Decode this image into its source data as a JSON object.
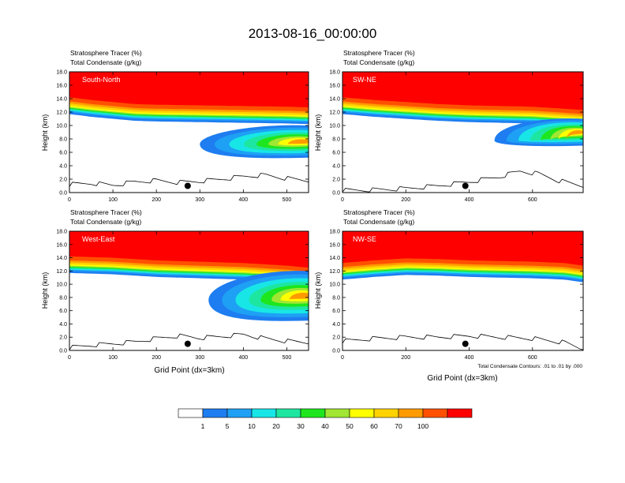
{
  "page": {
    "title": "2013-08-16_00:00:00"
  },
  "colors": {
    "levels": [
      "#ffffff",
      "#1e7df0",
      "#1ea0f5",
      "#18e6e6",
      "#1de6a0",
      "#1ee61e",
      "#a0e632",
      "#ffff00",
      "#ffd200",
      "#ff9b00",
      "#ff5000",
      "#ff0000"
    ],
    "contour": "#000000",
    "marker": "#000000"
  },
  "legend": {
    "tick_labels": [
      "1",
      "5",
      "10",
      "20",
      "30",
      "40",
      "50",
      "60",
      "70",
      "100"
    ]
  },
  "chart_data": [
    {
      "type": "contour-cross-section",
      "label": "South-North",
      "left_title_1": "Stratosphere Tracer   (%)",
      "left_title_2": "Total Condensate   (g/kg)",
      "ylabel": "Height (km)",
      "xlabel": "",
      "xlim": [
        0,
        550
      ],
      "ylim": [
        0,
        18
      ],
      "x_ticks": [
        "0",
        "100",
        "200",
        "300",
        "400",
        "500"
      ],
      "y_ticks": [
        "0.0",
        "2.0",
        "4.0",
        "6.0",
        "8.0",
        "10.0",
        "12.0",
        "14.0",
        "16.0",
        "18.0"
      ],
      "tropopause_km": [
        [
          0,
          14.2
        ],
        [
          50,
          13.8
        ],
        [
          100,
          13.5
        ],
        [
          150,
          13.2
        ],
        [
          200,
          13.1
        ],
        [
          300,
          13.0
        ],
        [
          400,
          12.9
        ],
        [
          500,
          12.8
        ],
        [
          550,
          12.7
        ]
      ],
      "intrusion": {
        "tip_x": 300,
        "tip_y": 6.8,
        "right_y_top": 10.0,
        "right_y_bottom": 5.2
      },
      "terrain_km": [
        [
          0,
          1.2
        ],
        [
          50,
          1.4
        ],
        [
          100,
          1.1
        ],
        [
          150,
          1.6
        ],
        [
          200,
          1.8
        ],
        [
          250,
          1.5
        ],
        [
          300,
          1.7
        ],
        [
          350,
          2.0
        ],
        [
          400,
          2.4
        ],
        [
          450,
          2.6
        ],
        [
          500,
          2.1
        ],
        [
          550,
          1.8
        ]
      ],
      "marker": {
        "x": 272,
        "y": 1.0
      }
    },
    {
      "type": "contour-cross-section",
      "label": "SW-NE",
      "left_title_1": "Stratosphere Tracer   (%)",
      "left_title_2": "Total Condensate   (g/kg)",
      "ylabel": "Height (km)",
      "xlabel": "",
      "xlim": [
        0,
        760
      ],
      "ylim": [
        0,
        18
      ],
      "x_ticks": [
        "0",
        "200",
        "400",
        "600"
      ],
      "y_ticks": [
        "0.0",
        "2.0",
        "4.0",
        "6.0",
        "8.0",
        "10.0",
        "12.0",
        "14.0",
        "16.0",
        "18.0"
      ],
      "tropopause_km": [
        [
          0,
          14.2
        ],
        [
          100,
          13.8
        ],
        [
          200,
          13.5
        ],
        [
          300,
          13.2
        ],
        [
          400,
          13.0
        ],
        [
          500,
          12.9
        ],
        [
          600,
          12.8
        ],
        [
          700,
          12.5
        ],
        [
          760,
          12.3
        ]
      ],
      "intrusion": {
        "tip_x": 480,
        "tip_y": 6.5,
        "right_y_top": 11.0,
        "right_y_bottom": 7.0
      },
      "terrain_km": [
        [
          0,
          0.3
        ],
        [
          100,
          0.4
        ],
        [
          200,
          0.6
        ],
        [
          300,
          1.0
        ],
        [
          400,
          1.6
        ],
        [
          500,
          2.4
        ],
        [
          560,
          3.2
        ],
        [
          620,
          2.8
        ],
        [
          680,
          1.8
        ],
        [
          760,
          1.0
        ]
      ],
      "marker": {
        "x": 388,
        "y": 1.0
      }
    },
    {
      "type": "contour-cross-section",
      "label": "West-East",
      "left_title_1": "Stratosphere Tracer   (%)",
      "left_title_2": "Total Condensate   (g/kg)",
      "ylabel": "Height (km)",
      "xlabel": "Grid Point (dx=3km)",
      "xlim": [
        0,
        550
      ],
      "ylim": [
        0,
        18
      ],
      "x_ticks": [
        "0",
        "100",
        "200",
        "300",
        "400",
        "500"
      ],
      "y_ticks": [
        "0.0",
        "2.0",
        "4.0",
        "6.0",
        "8.0",
        "10.0",
        "12.0",
        "14.0",
        "16.0",
        "18.0"
      ],
      "tropopause_km": [
        [
          0,
          14.2
        ],
        [
          100,
          14.0
        ],
        [
          200,
          13.6
        ],
        [
          300,
          13.4
        ],
        [
          400,
          13.2
        ],
        [
          500,
          12.8
        ],
        [
          550,
          12.5
        ]
      ],
      "intrusion": {
        "tip_x": 320,
        "tip_y": 7.0,
        "right_y_top": 12.0,
        "right_y_bottom": 4.5
      },
      "terrain_km": [
        [
          0,
          0.4
        ],
        [
          50,
          0.8
        ],
        [
          100,
          1.0
        ],
        [
          150,
          1.3
        ],
        [
          200,
          1.8
        ],
        [
          250,
          2.2
        ],
        [
          300,
          1.9
        ],
        [
          350,
          2.1
        ],
        [
          400,
          2.4
        ],
        [
          450,
          1.8
        ],
        [
          500,
          1.4
        ],
        [
          550,
          1.2
        ]
      ],
      "marker": {
        "x": 272,
        "y": 1.0
      }
    },
    {
      "type": "contour-cross-section",
      "label": "NW-SE",
      "left_title_1": "Stratosphere Tracer   (%)",
      "left_title_2": "Total Condensate   (g/kg)",
      "ylabel": "Height (km)",
      "xlabel": "Grid Point (dx=3km)",
      "contour_note": "Total Condensate Contours: .01 to .01 by .000",
      "xlim": [
        0,
        760
      ],
      "ylim": [
        0,
        18
      ],
      "x_ticks": [
        "0",
        "200",
        "400",
        "600"
      ],
      "y_ticks": [
        "0.0",
        "2.0",
        "4.0",
        "6.0",
        "8.0",
        "10.0",
        "12.0",
        "14.0",
        "16.0",
        "18.0"
      ],
      "tropopause_km": [
        [
          0,
          13.2
        ],
        [
          100,
          13.6
        ],
        [
          200,
          13.9
        ],
        [
          300,
          13.8
        ],
        [
          400,
          13.6
        ],
        [
          500,
          13.5
        ],
        [
          600,
          13.4
        ],
        [
          700,
          13.2
        ],
        [
          760,
          12.8
        ]
      ],
      "intrusion": null,
      "terrain_km": [
        [
          0,
          1.4
        ],
        [
          100,
          1.8
        ],
        [
          200,
          2.0
        ],
        [
          300,
          2.0
        ],
        [
          400,
          2.2
        ],
        [
          500,
          2.0
        ],
        [
          600,
          1.8
        ],
        [
          700,
          1.2
        ],
        [
          760,
          0.2
        ]
      ],
      "marker": {
        "x": 388,
        "y": 1.0
      }
    }
  ]
}
